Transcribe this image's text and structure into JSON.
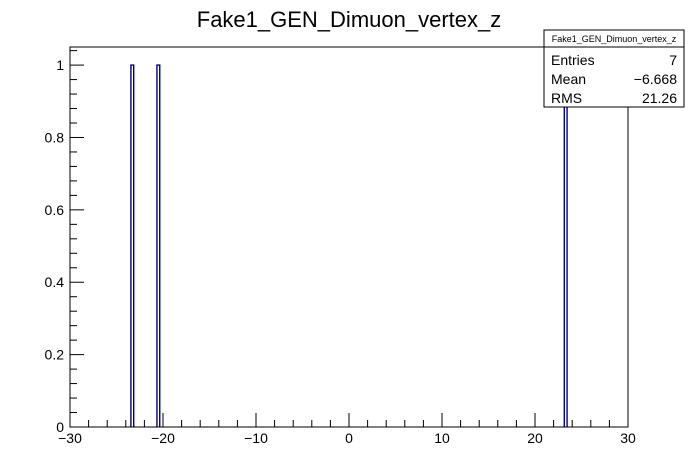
{
  "chart_data": {
    "type": "bar",
    "title": "Fake1_GEN_Dimuon_vertex_z",
    "xlabel": "",
    "ylabel": "",
    "xlim": [
      -30,
      30
    ],
    "ylim": [
      0,
      1.05
    ],
    "x_ticks": [
      -30,
      -20,
      -10,
      0,
      10,
      20,
      30
    ],
    "y_ticks": [
      0,
      0.2,
      0.4,
      0.6,
      0.8,
      1
    ],
    "x_tick_labels": [
      "−30",
      "−20",
      "−10",
      "0",
      "10",
      "20",
      "30"
    ],
    "y_tick_labels": [
      "0",
      "0.2",
      "0.4",
      "0.6",
      "0.8",
      "1"
    ],
    "bin_width": 0.3,
    "bins": [
      {
        "x": -23.3,
        "value": 1
      },
      {
        "x": -20.5,
        "value": 1
      },
      {
        "x": 23.3,
        "value": 1
      }
    ],
    "line_color": "#000080",
    "grid": false,
    "legend": "top-right",
    "stats": {
      "title": "Fake1_GEN_Dimuon_vertex_z",
      "rows": [
        {
          "label": "Entries",
          "value": "7"
        },
        {
          "label": "Mean",
          "value": "−6.668"
        },
        {
          "label": "RMS",
          "value": "21.26"
        }
      ]
    }
  }
}
